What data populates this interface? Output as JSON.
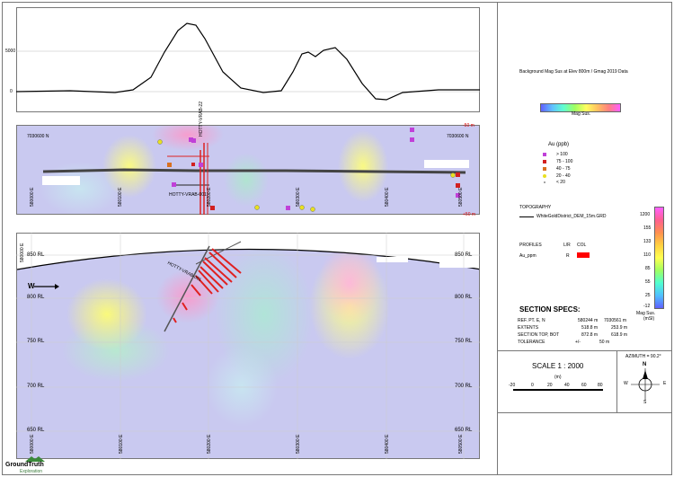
{
  "profile": {
    "tick_0": "0",
    "tick_5000": "5000"
  },
  "plan": {
    "north_left": "7030600 N",
    "north_right": "7030600 N",
    "minus50": "-50 m",
    "plus50": "+50 m",
    "eastings": [
      "580000 E",
      "580100 E",
      "580200 E",
      "580300 E",
      "580400 E",
      "580500 E"
    ],
    "hole_label_1": "HOTTY-VRAB-22",
    "hole_label_2": "HOTTY-VRAB-001"
  },
  "section": {
    "rl_left": [
      "850 RL",
      "800 RL",
      "750 RL",
      "700 RL",
      "650 RL"
    ],
    "rl_right": [
      "850 RL",
      "800 RL",
      "750 RL",
      "700 RL",
      "650 RL"
    ],
    "eastings": [
      "580000 E",
      "580100 E",
      "580200 E",
      "580300 E",
      "580400 E",
      "580500 E"
    ],
    "direction": "W",
    "hole_label": "HOTTY-VRAB-001"
  },
  "legend": {
    "title": "Background Mag Sus at Elev 800m / Gmag 2019 Data",
    "colorbar_label": "Mag Sus.",
    "au_title": "Au (ppb)",
    "au_entries": [
      {
        "range": ">  100",
        "color": "#c040d8",
        "shape": "square"
      },
      {
        "range": "75  -  100",
        "color": "#d22020",
        "shape": "square"
      },
      {
        "range": "40  -  75",
        "color": "#d87020",
        "shape": "square"
      },
      {
        "range": "20  -  40",
        "color": "#e8e020",
        "shape": "circle"
      },
      {
        "range": "<  20",
        "color": "#888888",
        "shape": "dot"
      }
    ],
    "topography_title": "TOPOGRAPHY",
    "topography_file": "WhiteGoldDistrict_DEM_15m.GRD",
    "profiles_title": "PROFILES",
    "lr_head": "L/R",
    "col_head": "COL",
    "profile_name": "Au_ppm",
    "profile_side": "R",
    "profile_color": "#ff0000",
    "scale_ticks": [
      "1200",
      "155",
      "133",
      "110",
      "85",
      "55",
      "25",
      "-12"
    ],
    "scale_unit_1": "Mag Sus.",
    "scale_unit_2": "(mSI)"
  },
  "specs": {
    "title": "SECTION SPECS:",
    "rows": [
      {
        "label": "REF. PT. E, N",
        "v1": "580244 m",
        "v2": "7030561 m"
      },
      {
        "label": "EXTENTS",
        "v1": "518.8 m",
        "v2": "253.9 m"
      },
      {
        "label": "SECTION TOP, BOT",
        "v1": "872.8 m",
        "v2": "618.9 m"
      },
      {
        "label": "TOLERANCE",
        "v1": "+/-",
        "v2": "50 m"
      }
    ]
  },
  "scale": {
    "title": "SCALE  1 : 2000",
    "unit": "(m)",
    "ticks": [
      "-20",
      "0",
      "20",
      "40",
      "60",
      "80"
    ]
  },
  "compass": {
    "azimuth": "AZIMUTH = 90.2°",
    "n": "N",
    "s": "S",
    "e": "E",
    "w": "W"
  },
  "logo": {
    "name": "GroundTruth",
    "sub": "Exploration"
  }
}
